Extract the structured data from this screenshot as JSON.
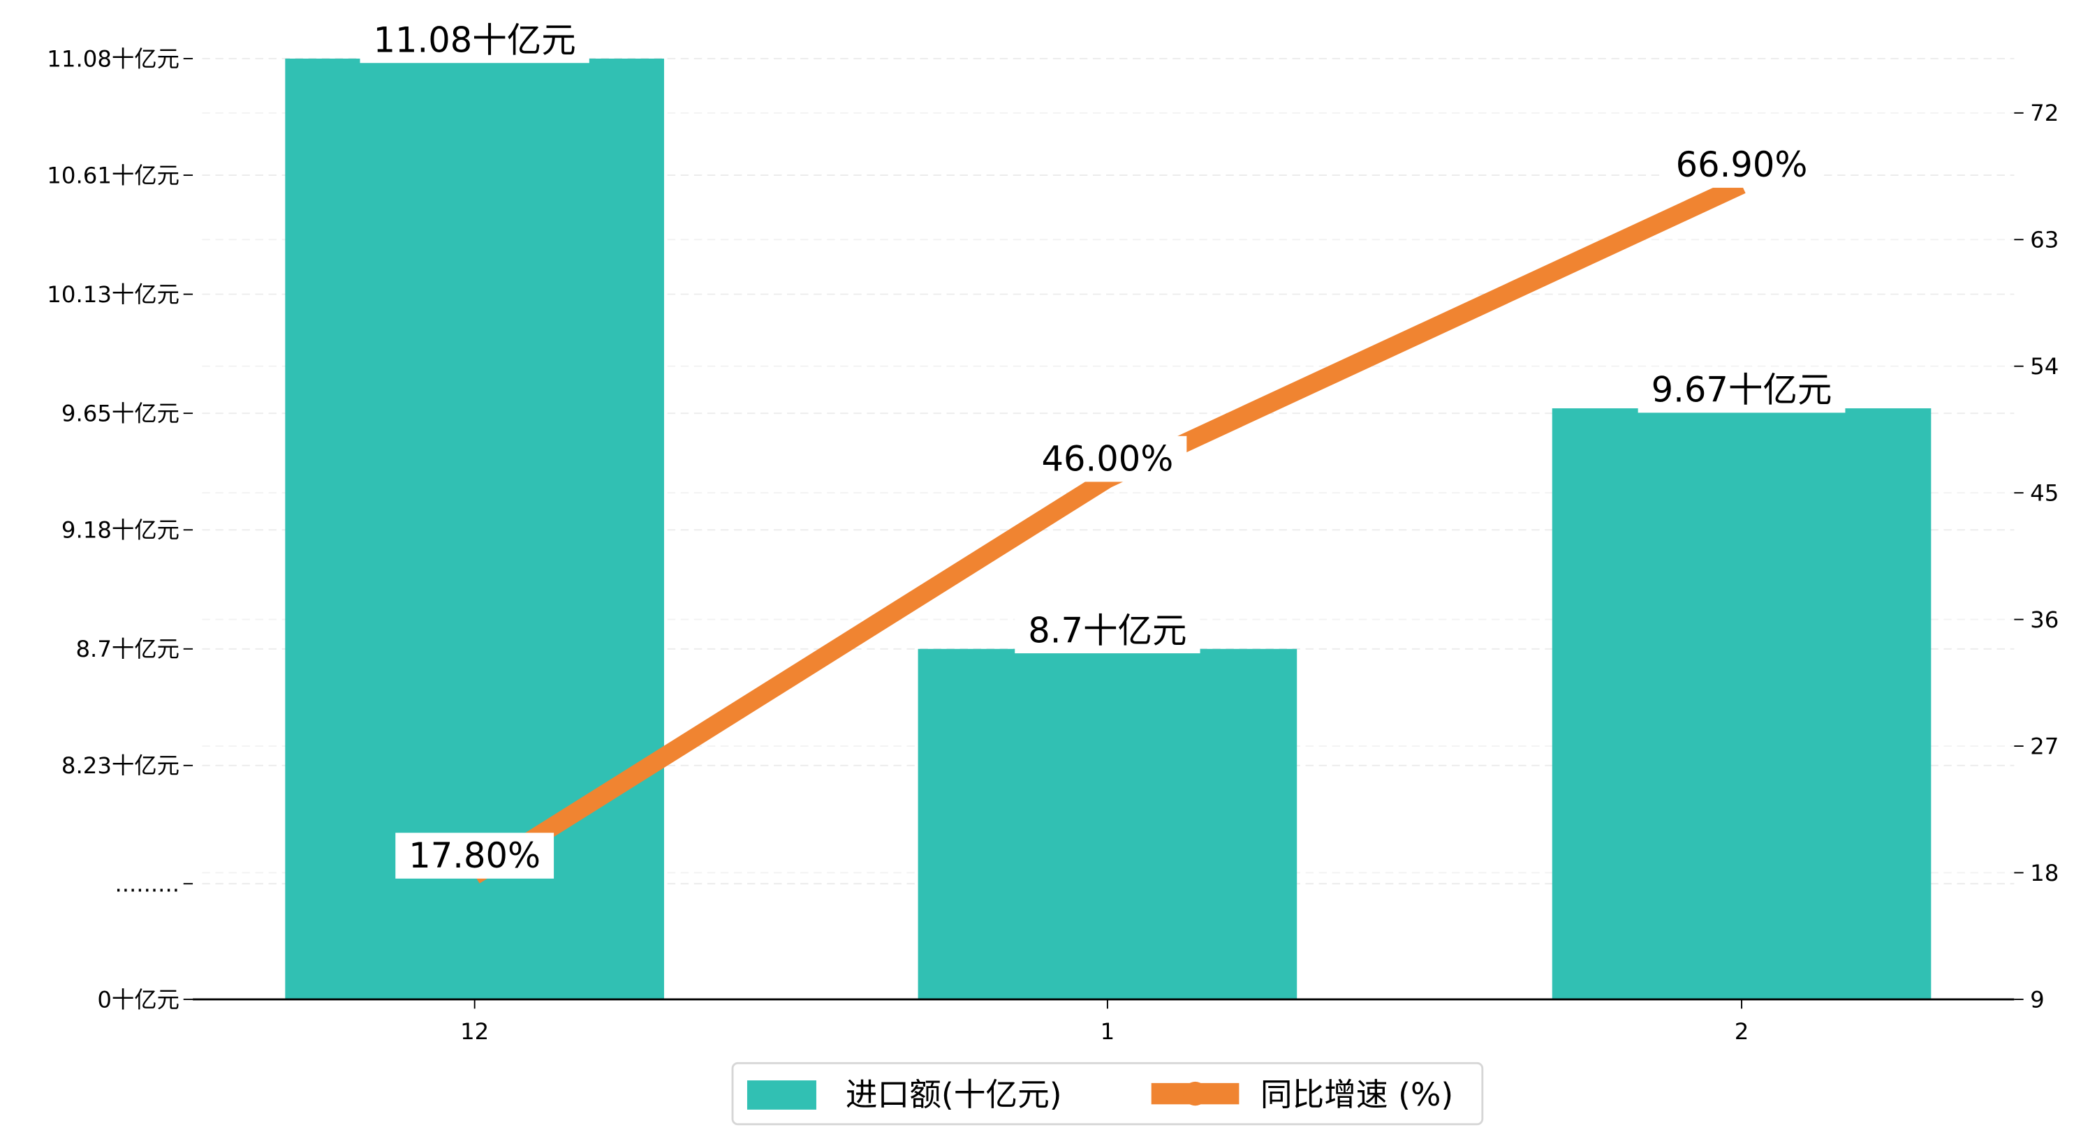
{
  "chart_data": {
    "type": "bar+line",
    "categories": [
      "12",
      "1",
      "2"
    ],
    "series": [
      {
        "name": "进口额(十亿元)",
        "type": "bar",
        "axis": "left",
        "values": [
          11.08,
          8.7,
          9.67
        ],
        "labels": [
          "11.08十亿元",
          "8.7十亿元",
          "9.67十亿元"
        ],
        "color": "#31C0B3"
      },
      {
        "name": "同比增速 (%)",
        "type": "line",
        "axis": "right",
        "values": [
          17.8,
          46.0,
          66.9
        ],
        "labels": [
          "17.80%",
          "46.00%",
          "66.90%"
        ],
        "color": "#F08431"
      }
    ],
    "left_axis": {
      "ticks": [
        {
          "value": 0,
          "label": "0十亿元"
        },
        {
          "value": null,
          "label": "........."
        },
        {
          "value": 8.23,
          "label": "8.23十亿元"
        },
        {
          "value": 8.7,
          "label": "8.7十亿元"
        },
        {
          "value": 9.18,
          "label": "9.18十亿元"
        },
        {
          "value": 9.65,
          "label": "9.65十亿元"
        },
        {
          "value": 10.13,
          "label": "10.13十亿元"
        },
        {
          "value": 10.61,
          "label": "10.61十亿元"
        },
        {
          "value": 11.08,
          "label": "11.08十亿元"
        }
      ],
      "broken": true
    },
    "right_axis": {
      "ticks": [
        9,
        18,
        27,
        36,
        45,
        54,
        63,
        72
      ],
      "ylim": [
        9,
        75
      ]
    },
    "grid": true,
    "legend": {
      "placement": "bottom-center",
      "entries": [
        "进口额(十亿元)",
        "同比增速 (%)"
      ]
    }
  }
}
